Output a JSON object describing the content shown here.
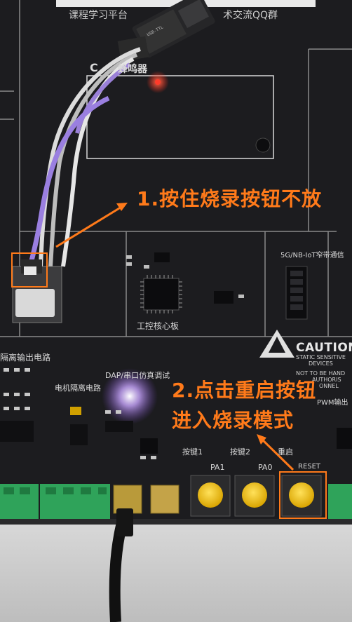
{
  "board": {
    "top_banner": "课程学习平台",
    "top_banner_right": "术交流QQ群",
    "buzzer_section": "C",
    "buzzer_label": "蜂鸣器",
    "core_label": "工控核心板",
    "iot_label": "5G/NB-IoT窄带通信",
    "dap_label": "DAP/串口仿真调试",
    "motor_label": "电机隔离电路",
    "isolation_label": "隔离输出电路",
    "pwm_label": "PWM输出",
    "key1_label": "按键1",
    "key2_label": "按键2",
    "restart_label": "重启",
    "pa1_label": "PA1",
    "pa0_label": "PA0",
    "reset_label": "RESET",
    "caution_title": "CAUTION",
    "caution_lines": [
      "STATIC SENSITIVE",
      "DEVICES",
      "NOT TO BE HAND",
      "AUTHORIS",
      "ONNEL"
    ]
  },
  "annotations": {
    "step1": "1.按住烧录按钮不放",
    "step2_line1": "2.点击重启按钮",
    "step2_line2": "进入烧录模式"
  },
  "colors": {
    "annotation": "#ff7a1a",
    "pcb": "#1b1b1e",
    "terminal_block": "#2fa35a",
    "button_cap": "#f2c314",
    "led_red": "#ff2a1a"
  }
}
